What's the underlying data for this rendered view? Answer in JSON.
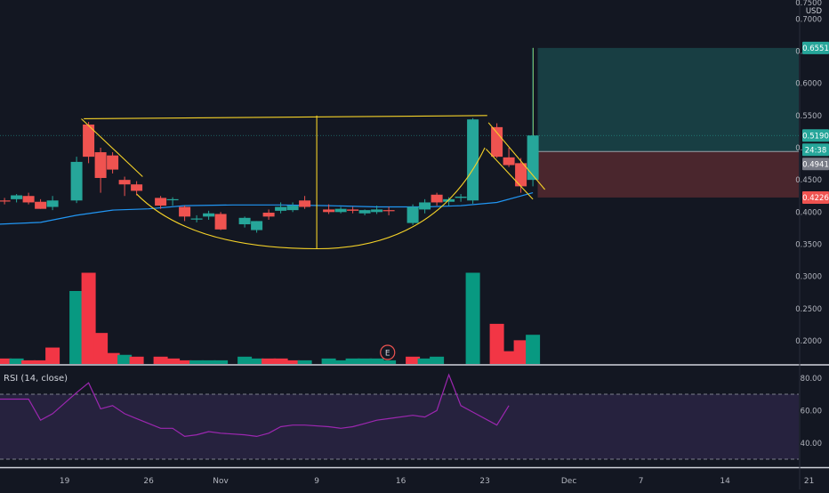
{
  "price_axis": {
    "currency": "USD",
    "top_label": "0.7500",
    "ticks": [
      "0.7000",
      "0.6500",
      "0.6000",
      "0.5500",
      "0.5000",
      "0.4500",
      "0.4000",
      "0.3500",
      "0.3000",
      "0.2500",
      "0.2000"
    ],
    "badges": [
      {
        "label": "0.6551",
        "price": 0.6551,
        "color": "#26a69a"
      },
      {
        "label": "0.5190",
        "price": 0.519,
        "color": "#26a69a"
      },
      {
        "label": "24:38",
        "price": 0.4938,
        "color": "#26a69a"
      },
      {
        "label": "0.4941",
        "price": 0.4941,
        "color": "#787b86"
      },
      {
        "label": "0.4226",
        "price": 0.4226,
        "color": "#ef5350"
      }
    ]
  },
  "time_axis": {
    "labels": [
      {
        "text": "19",
        "day": 0
      },
      {
        "text": "26",
        "day": 7
      },
      {
        "text": "Nov",
        "day": 13
      },
      {
        "text": "9",
        "day": 21
      },
      {
        "text": "16",
        "day": 28
      },
      {
        "text": "23",
        "day": 35
      },
      {
        "text": "Dec",
        "day": 42
      },
      {
        "text": "7",
        "day": 48
      },
      {
        "text": "14",
        "day": 55
      },
      {
        "text": "21",
        "day": 62
      }
    ]
  },
  "earnings_marker": {
    "label": "E",
    "day": 26.9
  },
  "rsi": {
    "title": "RSI (14, close)",
    "ticks": [
      "80.00",
      "60.00",
      "40.00"
    ],
    "upper": 70,
    "lower": 30,
    "line_color": "#9c27b0",
    "values": [
      67,
      67,
      67,
      54,
      58,
      71,
      77,
      61,
      63,
      58,
      55,
      49,
      49,
      44,
      45,
      47,
      46,
      45,
      44,
      46,
      50,
      51,
      51,
      50,
      49,
      50,
      52,
      54,
      55,
      57,
      56,
      60,
      82,
      63,
      59,
      51,
      63
    ]
  },
  "chart_data": {
    "type": "candlestick",
    "symbol_currency": "USD",
    "up_color": "#26a69a",
    "down_color": "#ef5350",
    "ma_color": "#2196f3",
    "ylim": [
      0.18,
      0.75
    ],
    "candles": [
      {
        "day": -5,
        "o": 0.418,
        "h": 0.422,
        "l": 0.412,
        "c": 0.417
      },
      {
        "day": -4,
        "o": 0.42,
        "h": 0.428,
        "l": 0.415,
        "c": 0.426
      },
      {
        "day": -3,
        "o": 0.425,
        "h": 0.43,
        "l": 0.412,
        "c": 0.415
      },
      {
        "day": -2,
        "o": 0.416,
        "h": 0.42,
        "l": 0.405,
        "c": 0.405
      },
      {
        "day": -1,
        "o": 0.408,
        "h": 0.425,
        "l": 0.403,
        "c": 0.418
      },
      {
        "day": 1,
        "o": 0.418,
        "h": 0.486,
        "l": 0.414,
        "c": 0.478
      },
      {
        "day": 2,
        "o": 0.536,
        "h": 0.54,
        "l": 0.476,
        "c": 0.486
      },
      {
        "day": 3,
        "o": 0.493,
        "h": 0.5,
        "l": 0.43,
        "c": 0.453
      },
      {
        "day": 4,
        "o": 0.488,
        "h": 0.493,
        "l": 0.46,
        "c": 0.466
      },
      {
        "day": 5,
        "o": 0.45,
        "h": 0.455,
        "l": 0.425,
        "c": 0.443
      },
      {
        "day": 6,
        "o": 0.443,
        "h": 0.448,
        "l": 0.426,
        "c": 0.433
      },
      {
        "day": 8,
        "o": 0.422,
        "h": 0.425,
        "l": 0.405,
        "c": 0.41
      },
      {
        "day": 9,
        "o": 0.42,
        "h": 0.423,
        "l": 0.41,
        "c": 0.42
      },
      {
        "day": 10,
        "o": 0.408,
        "h": 0.41,
        "l": 0.386,
        "c": 0.393
      },
      {
        "day": 11,
        "o": 0.39,
        "h": 0.395,
        "l": 0.384,
        "c": 0.39
      },
      {
        "day": 12,
        "o": 0.393,
        "h": 0.402,
        "l": 0.388,
        "c": 0.398
      },
      {
        "day": 13,
        "o": 0.397,
        "h": 0.4,
        "l": 0.372,
        "c": 0.373
      },
      {
        "day": 15,
        "o": 0.381,
        "h": 0.393,
        "l": 0.376,
        "c": 0.391
      },
      {
        "day": 16,
        "o": 0.372,
        "h": 0.386,
        "l": 0.368,
        "c": 0.386
      },
      {
        "day": 17,
        "o": 0.399,
        "h": 0.404,
        "l": 0.388,
        "c": 0.393
      },
      {
        "day": 18,
        "o": 0.402,
        "h": 0.415,
        "l": 0.398,
        "c": 0.408
      },
      {
        "day": 19,
        "o": 0.403,
        "h": 0.415,
        "l": 0.4,
        "c": 0.41
      },
      {
        "day": 20,
        "o": 0.418,
        "h": 0.425,
        "l": 0.405,
        "c": 0.408
      },
      {
        "day": 22,
        "o": 0.404,
        "h": 0.412,
        "l": 0.397,
        "c": 0.4
      },
      {
        "day": 23,
        "o": 0.4,
        "h": 0.408,
        "l": 0.398,
        "c": 0.405
      },
      {
        "day": 24,
        "o": 0.404,
        "h": 0.408,
        "l": 0.398,
        "c": 0.402
      },
      {
        "day": 25,
        "o": 0.398,
        "h": 0.404,
        "l": 0.395,
        "c": 0.403
      },
      {
        "day": 26,
        "o": 0.4,
        "h": 0.41,
        "l": 0.397,
        "c": 0.404
      },
      {
        "day": 27,
        "o": 0.403,
        "h": 0.408,
        "l": 0.395,
        "c": 0.402
      },
      {
        "day": 29,
        "o": 0.383,
        "h": 0.412,
        "l": 0.38,
        "c": 0.408
      },
      {
        "day": 30,
        "o": 0.404,
        "h": 0.42,
        "l": 0.398,
        "c": 0.415
      },
      {
        "day": 31,
        "o": 0.427,
        "h": 0.43,
        "l": 0.41,
        "c": 0.415
      },
      {
        "day": 32,
        "o": 0.416,
        "h": 0.423,
        "l": 0.41,
        "c": 0.42
      },
      {
        "day": 33,
        "o": 0.422,
        "h": 0.428,
        "l": 0.416,
        "c": 0.424
      },
      {
        "day": 34,
        "o": 0.418,
        "h": 0.546,
        "l": 0.413,
        "c": 0.544
      },
      {
        "day": 36,
        "o": 0.532,
        "h": 0.538,
        "l": 0.484,
        "c": 0.486
      },
      {
        "day": 37,
        "o": 0.485,
        "h": 0.5,
        "l": 0.47,
        "c": 0.473
      },
      {
        "day": 38,
        "o": 0.476,
        "h": 0.484,
        "l": 0.43,
        "c": 0.44
      },
      {
        "day": 39,
        "o": 0.45,
        "h": 0.655,
        "l": 0.44,
        "c": 0.519
      }
    ],
    "volume_bars": [
      {
        "day": -5,
        "up": false,
        "v": 0.03
      },
      {
        "day": -4,
        "up": true,
        "v": 0.03
      },
      {
        "day": -3,
        "up": false,
        "v": 0.02
      },
      {
        "day": -2,
        "up": false,
        "v": 0.02
      },
      {
        "day": -1,
        "up": false,
        "v": 0.09
      },
      {
        "day": 1,
        "up": true,
        "v": 0.4
      },
      {
        "day": 2,
        "up": false,
        "v": 0.5
      },
      {
        "day": 3,
        "up": false,
        "v": 0.17
      },
      {
        "day": 4,
        "up": false,
        "v": 0.06
      },
      {
        "day": 5,
        "up": true,
        "v": 0.05
      },
      {
        "day": 6,
        "up": false,
        "v": 0.04
      },
      {
        "day": 8,
        "up": false,
        "v": 0.04
      },
      {
        "day": 9,
        "up": false,
        "v": 0.03
      },
      {
        "day": 10,
        "up": false,
        "v": 0.02
      },
      {
        "day": 11,
        "up": true,
        "v": 0.02
      },
      {
        "day": 12,
        "up": true,
        "v": 0.02
      },
      {
        "day": 13,
        "up": true,
        "v": 0.02
      },
      {
        "day": 15,
        "up": true,
        "v": 0.04
      },
      {
        "day": 16,
        "up": true,
        "v": 0.03
      },
      {
        "day": 17,
        "up": false,
        "v": 0.03
      },
      {
        "day": 18,
        "up": false,
        "v": 0.03
      },
      {
        "day": 19,
        "up": false,
        "v": 0.02
      },
      {
        "day": 20,
        "up": true,
        "v": 0.02
      },
      {
        "day": 22,
        "up": true,
        "v": 0.03
      },
      {
        "day": 23,
        "up": true,
        "v": 0.02
      },
      {
        "day": 24,
        "up": true,
        "v": 0.03
      },
      {
        "day": 25,
        "up": true,
        "v": 0.03
      },
      {
        "day": 26,
        "up": true,
        "v": 0.03
      },
      {
        "day": 27,
        "up": true,
        "v": 0.02
      },
      {
        "day": 29,
        "up": false,
        "v": 0.04
      },
      {
        "day": 30,
        "up": true,
        "v": 0.03
      },
      {
        "day": 31,
        "up": true,
        "v": 0.04
      },
      {
        "day": 34,
        "up": true,
        "v": 0.5
      },
      {
        "day": 36,
        "up": false,
        "v": 0.22
      },
      {
        "day": 37,
        "up": false,
        "v": 0.07
      },
      {
        "day": 38,
        "up": false,
        "v": 0.13
      },
      {
        "day": 39,
        "up": true,
        "v": 0.16
      }
    ],
    "moving_average": [
      {
        "day": -7,
        "p": 0.38
      },
      {
        "day": -2,
        "p": 0.384
      },
      {
        "day": 1,
        "p": 0.395
      },
      {
        "day": 4,
        "p": 0.403
      },
      {
        "day": 7,
        "p": 0.405
      },
      {
        "day": 10,
        "p": 0.41
      },
      {
        "day": 14,
        "p": 0.411
      },
      {
        "day": 18,
        "p": 0.411
      },
      {
        "day": 22,
        "p": 0.41
      },
      {
        "day": 26,
        "p": 0.408
      },
      {
        "day": 30,
        "p": 0.408
      },
      {
        "day": 33,
        "p": 0.41
      },
      {
        "day": 36,
        "p": 0.415
      },
      {
        "day": 39,
        "p": 0.43
      }
    ],
    "position_tool": {
      "start_day": 39.4,
      "entry": 0.4941,
      "target": 0.6551,
      "stop": 0.4226,
      "profit_fill": "#26a69a",
      "loss_fill": "#ef5350"
    },
    "cup_pattern": {
      "color": "#f5d228",
      "rim": [
        {
          "day": 1.6,
          "p": 0.545
        },
        {
          "day": 35.2,
          "p": 0.55
        }
      ],
      "left_wall": [
        {
          "day": 1.4,
          "p": 0.545
        },
        {
          "day": 6.5,
          "p": 0.455
        }
      ],
      "cup_curve": {
        "from": {
          "day": 6,
          "p": 0.428
        },
        "bottom": {
          "day": 21,
          "p": 0.343
        },
        "to": {
          "day": 35,
          "p": 0.5
        }
      },
      "center_line": [
        {
          "day": 21,
          "p": 0.55
        },
        {
          "day": 21,
          "p": 0.343
        }
      ],
      "handle_upper": [
        {
          "day": 35.3,
          "p": 0.539
        },
        {
          "day": 40,
          "p": 0.435
        }
      ],
      "handle_lower": [
        {
          "day": 35.1,
          "p": 0.498
        },
        {
          "day": 39,
          "p": 0.42
        }
      ]
    }
  }
}
